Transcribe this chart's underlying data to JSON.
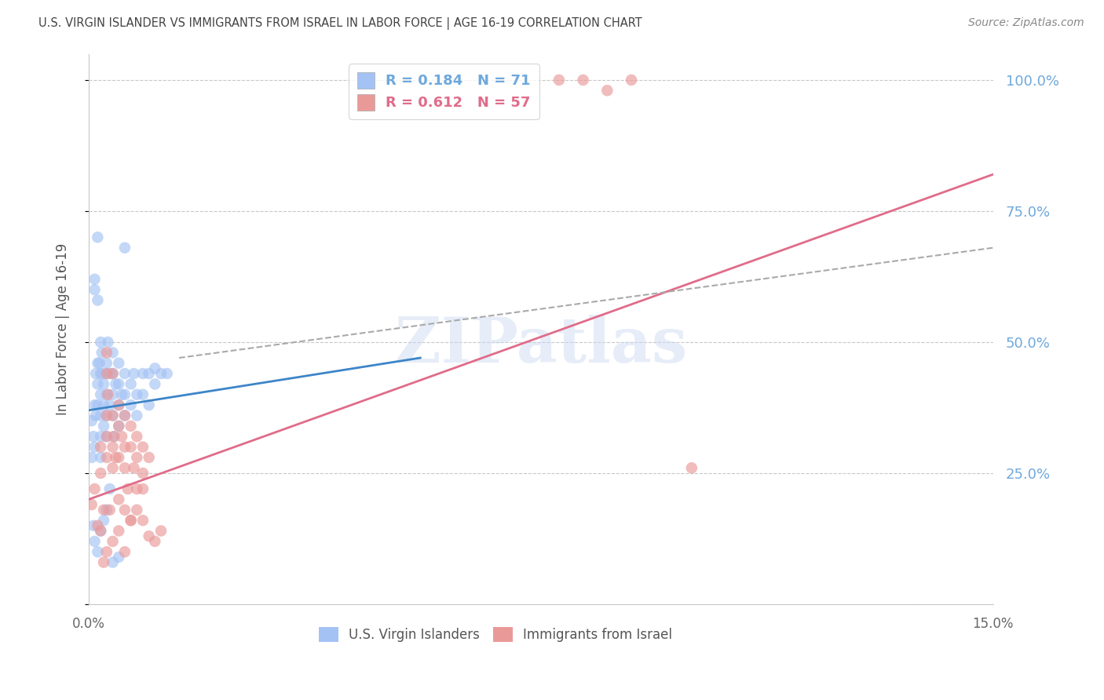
{
  "title": "U.S. VIRGIN ISLANDER VS IMMIGRANTS FROM ISRAEL IN LABOR FORCE | AGE 16-19 CORRELATION CHART",
  "source": "Source: ZipAtlas.com",
  "ylabel": "In Labor Force | Age 16-19",
  "xlim": [
    0.0,
    0.15
  ],
  "ylim": [
    0.0,
    1.05
  ],
  "ytick_labels": [
    "",
    "25.0%",
    "50.0%",
    "75.0%",
    "100.0%"
  ],
  "ytick_values": [
    0.0,
    0.25,
    0.5,
    0.75,
    1.0
  ],
  "xtick_labels": [
    "0.0%",
    "15.0%"
  ],
  "xtick_values": [
    0.0,
    0.15
  ],
  "blue_R": 0.184,
  "blue_N": 71,
  "pink_R": 0.612,
  "pink_N": 57,
  "watermark": "ZIPatlas",
  "bg_color": "#ffffff",
  "grid_color": "#c8c8c8",
  "title_color": "#444444",
  "right_tick_color": "#6fa8dc",
  "blue_scatter_color": "#a4c2f4",
  "pink_scatter_color": "#ea9999",
  "blue_line_color": "#3d85c8",
  "pink_line_color": "#e06c8a",
  "dashed_line_color": "#aaaaaa",
  "blue_x": [
    0.0005,
    0.0005,
    0.0008,
    0.001,
    0.001,
    0.001,
    0.001,
    0.0012,
    0.0012,
    0.0015,
    0.0015,
    0.0015,
    0.0015,
    0.0018,
    0.002,
    0.002,
    0.002,
    0.002,
    0.002,
    0.002,
    0.0022,
    0.0022,
    0.0025,
    0.0025,
    0.0025,
    0.003,
    0.003,
    0.003,
    0.003,
    0.003,
    0.0032,
    0.0035,
    0.0035,
    0.004,
    0.004,
    0.004,
    0.004,
    0.0042,
    0.0045,
    0.005,
    0.005,
    0.005,
    0.005,
    0.0055,
    0.006,
    0.006,
    0.006,
    0.007,
    0.007,
    0.0075,
    0.008,
    0.008,
    0.009,
    0.009,
    0.01,
    0.01,
    0.011,
    0.011,
    0.012,
    0.013,
    0.0008,
    0.001,
    0.0015,
    0.002,
    0.0025,
    0.003,
    0.0035,
    0.004,
    0.005,
    0.006,
    0.0015
  ],
  "blue_y": [
    0.35,
    0.28,
    0.32,
    0.6,
    0.62,
    0.38,
    0.3,
    0.36,
    0.44,
    0.58,
    0.46,
    0.42,
    0.38,
    0.46,
    0.5,
    0.44,
    0.4,
    0.36,
    0.32,
    0.28,
    0.48,
    0.44,
    0.42,
    0.38,
    0.34,
    0.44,
    0.4,
    0.36,
    0.32,
    0.46,
    0.5,
    0.44,
    0.38,
    0.48,
    0.44,
    0.4,
    0.36,
    0.32,
    0.42,
    0.46,
    0.42,
    0.38,
    0.34,
    0.4,
    0.44,
    0.4,
    0.36,
    0.42,
    0.38,
    0.44,
    0.4,
    0.36,
    0.44,
    0.4,
    0.44,
    0.38,
    0.45,
    0.42,
    0.44,
    0.44,
    0.15,
    0.12,
    0.1,
    0.14,
    0.16,
    0.18,
    0.22,
    0.08,
    0.09,
    0.68,
    0.7
  ],
  "pink_x": [
    0.0005,
    0.001,
    0.0015,
    0.002,
    0.002,
    0.002,
    0.0025,
    0.003,
    0.003,
    0.003,
    0.003,
    0.0032,
    0.0035,
    0.004,
    0.004,
    0.004,
    0.0042,
    0.0045,
    0.005,
    0.005,
    0.005,
    0.0055,
    0.006,
    0.006,
    0.006,
    0.0065,
    0.007,
    0.007,
    0.0075,
    0.008,
    0.008,
    0.009,
    0.009,
    0.01,
    0.01,
    0.011,
    0.012,
    0.0025,
    0.003,
    0.004,
    0.005,
    0.006,
    0.007,
    0.008,
    0.009,
    0.003,
    0.004,
    0.005,
    0.006,
    0.007,
    0.008,
    0.009,
    0.078,
    0.082,
    0.086,
    0.09,
    0.1
  ],
  "pink_y": [
    0.19,
    0.22,
    0.15,
    0.3,
    0.25,
    0.14,
    0.18,
    0.36,
    0.32,
    0.28,
    0.44,
    0.4,
    0.18,
    0.36,
    0.3,
    0.26,
    0.32,
    0.28,
    0.38,
    0.34,
    0.28,
    0.32,
    0.36,
    0.3,
    0.26,
    0.22,
    0.34,
    0.3,
    0.26,
    0.32,
    0.22,
    0.3,
    0.16,
    0.28,
    0.13,
    0.12,
    0.14,
    0.08,
    0.1,
    0.12,
    0.14,
    0.1,
    0.16,
    0.28,
    0.22,
    0.48,
    0.44,
    0.2,
    0.18,
    0.16,
    0.18,
    0.25,
    1.0,
    1.0,
    0.98,
    1.0,
    0.26
  ],
  "blue_line_x": [
    0.0,
    0.055
  ],
  "blue_line_y": [
    0.37,
    0.47
  ],
  "pink_line_x": [
    0.0,
    0.15
  ],
  "pink_line_y": [
    0.2,
    0.82
  ],
  "dashed_line_x": [
    0.015,
    0.15
  ],
  "dashed_line_y": [
    0.47,
    0.68
  ]
}
